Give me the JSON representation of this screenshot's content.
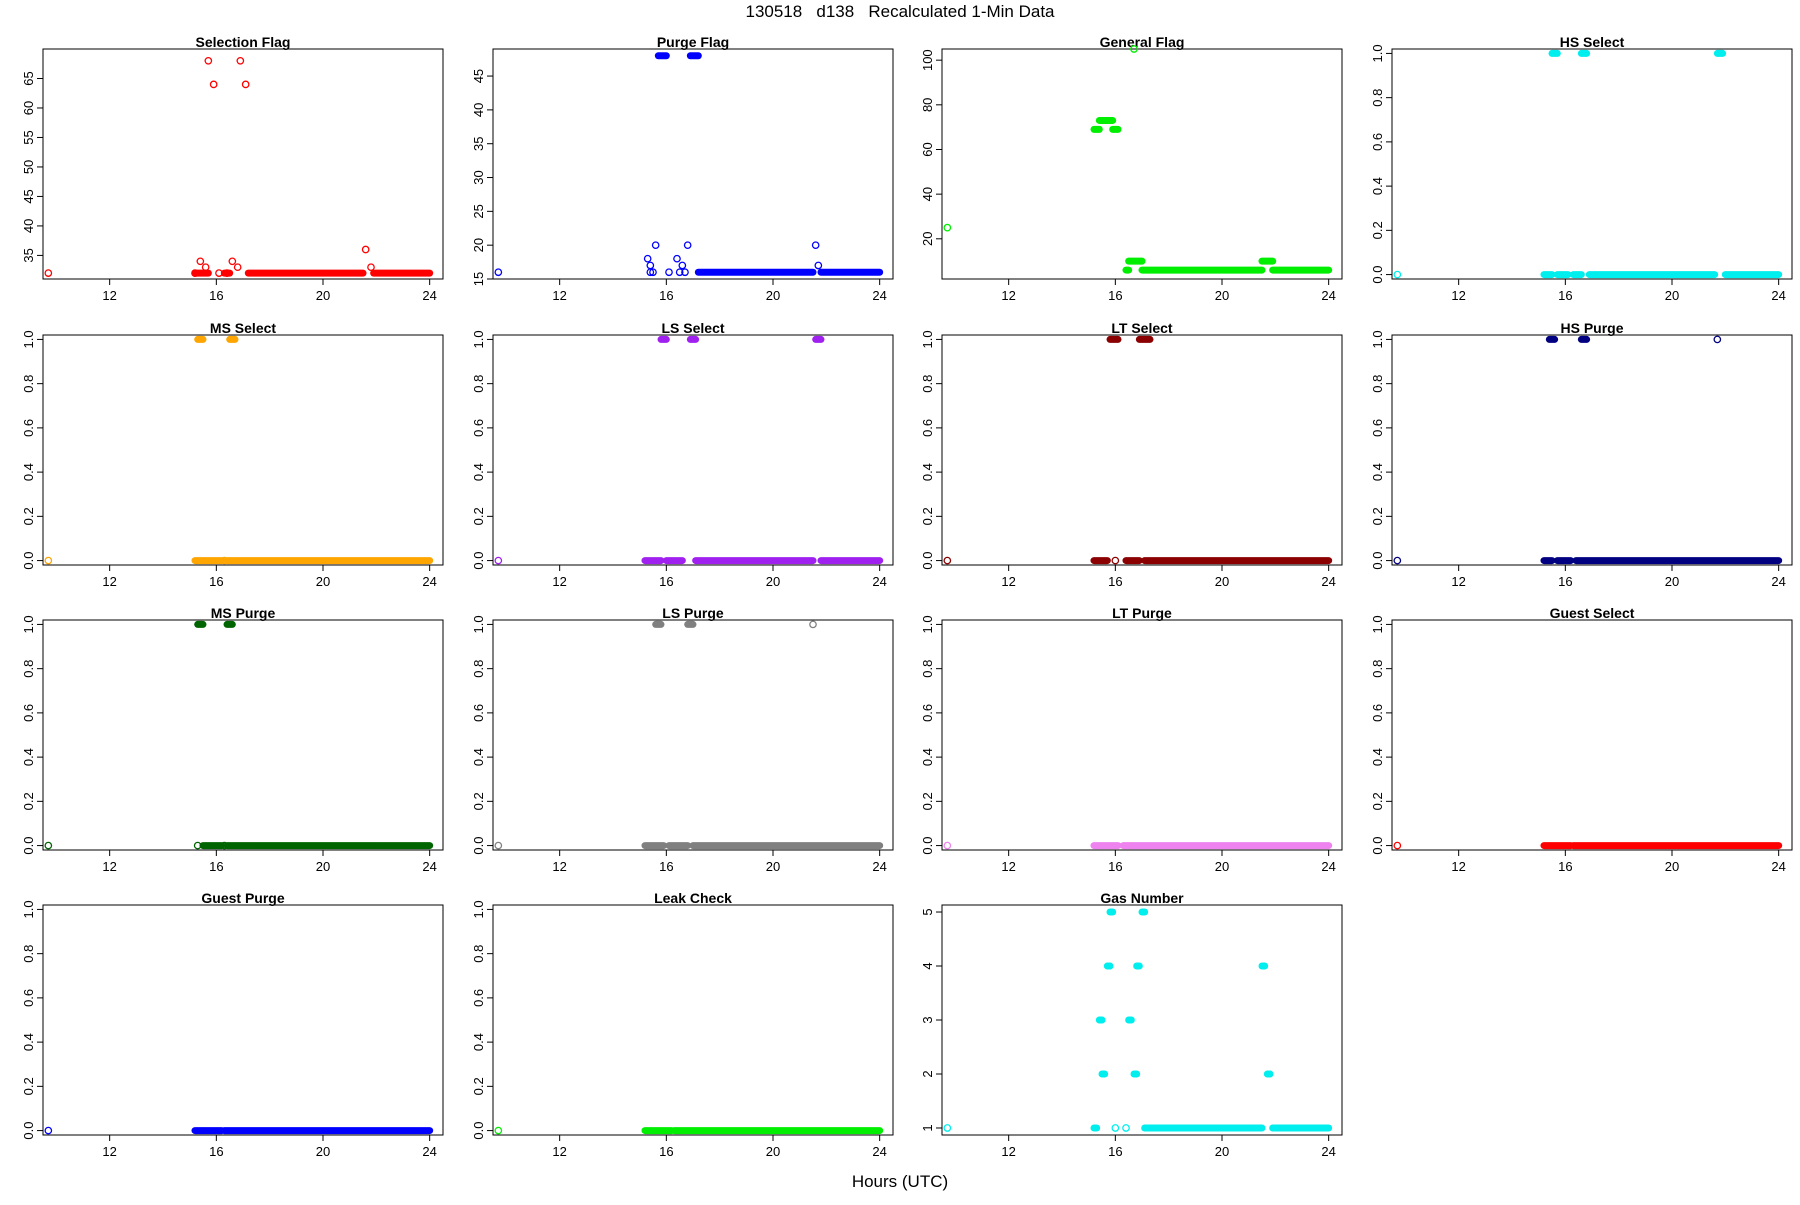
{
  "figure": {
    "title": "130518   d138   Recalculated 1-Min Data",
    "xlabel": "Hours (UTC)"
  },
  "chart_data": [
    {
      "type": "scatter",
      "title": "Selection Flag",
      "color": "#ff0000",
      "xlim": [
        9.5,
        24.5
      ],
      "ylim": [
        31,
        70
      ],
      "xticks": [
        12,
        16,
        20,
        24
      ],
      "yticks": [
        35,
        40,
        45,
        50,
        55,
        60,
        65
      ],
      "points": [
        [
          9.7,
          32
        ],
        [
          15.2,
          32
        ],
        [
          15.4,
          34
        ],
        [
          15.6,
          33
        ],
        [
          15.7,
          68
        ],
        [
          15.9,
          64
        ],
        [
          16.1,
          32
        ],
        [
          16.4,
          32
        ],
        [
          16.6,
          34
        ],
        [
          16.8,
          33
        ],
        [
          16.9,
          68
        ],
        [
          17.1,
          64
        ],
        [
          21.6,
          36
        ],
        [
          21.8,
          33
        ]
      ],
      "segments": [
        [
          15.2,
          15.7,
          32
        ],
        [
          16.3,
          16.5,
          32
        ],
        [
          17.2,
          21.5,
          32
        ],
        [
          21.9,
          24.0,
          32
        ]
      ]
    },
    {
      "type": "scatter",
      "title": "Purge Flag",
      "color": "#0000ff",
      "xlim": [
        9.5,
        24.5
      ],
      "ylim": [
        15,
        49
      ],
      "xticks": [
        12,
        16,
        20,
        24
      ],
      "yticks": [
        15,
        20,
        25,
        30,
        35,
        40,
        45
      ],
      "points": [
        [
          9.7,
          16
        ],
        [
          15.3,
          18
        ],
        [
          15.4,
          17
        ],
        [
          15.5,
          16
        ],
        [
          15.6,
          20
        ],
        [
          15.4,
          16
        ],
        [
          16.1,
          16
        ],
        [
          16.4,
          18
        ],
        [
          16.5,
          16
        ],
        [
          16.6,
          17
        ],
        [
          16.7,
          16
        ],
        [
          16.8,
          20
        ],
        [
          21.6,
          20
        ],
        [
          21.7,
          17
        ]
      ],
      "segments": [
        [
          15.7,
          16.0,
          48
        ],
        [
          16.9,
          17.2,
          48
        ],
        [
          17.2,
          21.5,
          16
        ],
        [
          21.8,
          24.0,
          16
        ]
      ]
    },
    {
      "type": "scatter",
      "title": "General Flag",
      "color": "#00ee00",
      "xlim": [
        9.5,
        24.5
      ],
      "ylim": [
        2,
        105
      ],
      "xticks": [
        12,
        16,
        20,
        24
      ],
      "yticks": [
        20,
        40,
        60,
        80,
        100
      ],
      "points": [
        [
          9.7,
          25
        ],
        [
          16.7,
          105
        ]
      ],
      "segments": [
        [
          15.2,
          15.4,
          69
        ],
        [
          15.4,
          15.9,
          73
        ],
        [
          15.9,
          16.1,
          69
        ],
        [
          16.4,
          16.5,
          6
        ],
        [
          16.5,
          17.0,
          10
        ],
        [
          17.0,
          21.5,
          6
        ],
        [
          21.5,
          21.9,
          10
        ],
        [
          21.9,
          24.0,
          6
        ]
      ]
    },
    {
      "type": "scatter",
      "title": "HS Select",
      "color": "#00eeee",
      "xlim": [
        9.5,
        24.5
      ],
      "ylim": [
        -0.02,
        1.02
      ],
      "xticks": [
        12,
        16,
        20,
        24
      ],
      "yticks": [
        0.0,
        0.2,
        0.4,
        0.6,
        0.8,
        1.0
      ],
      "points": [
        [
          9.7,
          0
        ]
      ],
      "segments": [
        [
          15.5,
          15.7,
          1
        ],
        [
          16.6,
          16.8,
          1
        ],
        [
          21.7,
          21.9,
          1
        ],
        [
          15.2,
          15.5,
          0
        ],
        [
          15.7,
          16.1,
          0
        ],
        [
          16.3,
          16.6,
          0
        ],
        [
          16.9,
          21.6,
          0
        ],
        [
          22.0,
          24.0,
          0
        ]
      ]
    },
    {
      "type": "scatter",
      "title": "MS Select",
      "color": "#ffa500",
      "xlim": [
        9.5,
        24.5
      ],
      "ylim": [
        -0.02,
        1.02
      ],
      "xticks": [
        12,
        16,
        20,
        24
      ],
      "yticks": [
        0.0,
        0.2,
        0.4,
        0.6,
        0.8,
        1.0
      ],
      "points": [
        [
          9.7,
          0
        ],
        [
          16.3,
          0
        ]
      ],
      "segments": [
        [
          15.3,
          15.5,
          1
        ],
        [
          16.5,
          16.7,
          1
        ],
        [
          15.2,
          16.2,
          0
        ],
        [
          16.4,
          24.0,
          0
        ]
      ]
    },
    {
      "type": "scatter",
      "title": "LS Select",
      "color": "#a020f0",
      "xlim": [
        9.5,
        24.5
      ],
      "ylim": [
        -0.02,
        1.02
      ],
      "xticks": [
        12,
        16,
        20,
        24
      ],
      "yticks": [
        0.0,
        0.2,
        0.4,
        0.6,
        0.8,
        1.0
      ],
      "points": [
        [
          9.7,
          0
        ]
      ],
      "segments": [
        [
          15.8,
          16.0,
          1
        ],
        [
          16.9,
          17.1,
          1
        ],
        [
          21.6,
          21.8,
          1
        ],
        [
          15.2,
          15.8,
          0
        ],
        [
          16.0,
          16.6,
          0
        ],
        [
          17.1,
          21.5,
          0
        ],
        [
          21.8,
          24.0,
          0
        ]
      ]
    },
    {
      "type": "scatter",
      "title": "LT Select",
      "color": "#8b0000",
      "xlim": [
        9.5,
        24.5
      ],
      "ylim": [
        -0.02,
        1.02
      ],
      "xticks": [
        12,
        16,
        20,
        24
      ],
      "yticks": [
        0.0,
        0.2,
        0.4,
        0.6,
        0.8,
        1.0
      ],
      "points": [
        [
          9.7,
          0
        ],
        [
          16.0,
          0
        ]
      ],
      "segments": [
        [
          15.8,
          16.1,
          1
        ],
        [
          16.9,
          17.3,
          1
        ],
        [
          15.2,
          15.7,
          0
        ],
        [
          16.4,
          16.9,
          0
        ],
        [
          17.1,
          24.0,
          0
        ]
      ]
    },
    {
      "type": "scatter",
      "title": "HS Purge",
      "color": "#000080",
      "xlim": [
        9.5,
        24.5
      ],
      "ylim": [
        -0.02,
        1.02
      ],
      "xticks": [
        12,
        16,
        20,
        24
      ],
      "yticks": [
        0.0,
        0.2,
        0.4,
        0.6,
        0.8,
        1.0
      ],
      "points": [
        [
          9.7,
          0
        ],
        [
          21.7,
          1
        ]
      ],
      "segments": [
        [
          15.4,
          15.6,
          1
        ],
        [
          16.6,
          16.8,
          1
        ],
        [
          15.2,
          15.5,
          0
        ],
        [
          15.7,
          16.2,
          0
        ],
        [
          16.4,
          24.0,
          0
        ]
      ]
    },
    {
      "type": "scatter",
      "title": "MS Purge",
      "color": "#006400",
      "xlim": [
        9.5,
        24.5
      ],
      "ylim": [
        -0.02,
        1.02
      ],
      "xticks": [
        12,
        16,
        20,
        24
      ],
      "yticks": [
        0.0,
        0.2,
        0.4,
        0.6,
        0.8,
        1.0
      ],
      "points": [
        [
          9.7,
          0
        ],
        [
          15.3,
          0
        ],
        [
          16.3,
          0
        ]
      ],
      "segments": [
        [
          15.3,
          15.5,
          1
        ],
        [
          16.4,
          16.6,
          1
        ],
        [
          15.5,
          16.2,
          0
        ],
        [
          16.4,
          24.0,
          0
        ]
      ]
    },
    {
      "type": "scatter",
      "title": "LS Purge",
      "color": "#808080",
      "xlim": [
        9.5,
        24.5
      ],
      "ylim": [
        -0.02,
        1.02
      ],
      "xticks": [
        12,
        16,
        20,
        24
      ],
      "yticks": [
        0.0,
        0.2,
        0.4,
        0.6,
        0.8,
        1.0
      ],
      "points": [
        [
          9.7,
          0
        ],
        [
          21.5,
          1
        ]
      ],
      "segments": [
        [
          15.6,
          15.8,
          1
        ],
        [
          16.8,
          17.0,
          1
        ],
        [
          15.2,
          15.9,
          0
        ],
        [
          16.1,
          16.8,
          0
        ],
        [
          17.0,
          24.0,
          0
        ]
      ]
    },
    {
      "type": "scatter",
      "title": "LT Purge",
      "color": "#ee82ee",
      "xlim": [
        9.5,
        24.5
      ],
      "ylim": [
        -0.02,
        1.02
      ],
      "xticks": [
        12,
        16,
        20,
        24
      ],
      "yticks": [
        0.0,
        0.2,
        0.4,
        0.6,
        0.8,
        1.0
      ],
      "points": [
        [
          9.7,
          0
        ]
      ],
      "segments": [
        [
          15.2,
          16.1,
          0
        ],
        [
          16.3,
          24.0,
          0
        ]
      ]
    },
    {
      "type": "scatter",
      "title": "Guest Select",
      "color": "#ff0000",
      "xlim": [
        9.5,
        24.5
      ],
      "ylim": [
        -0.02,
        1.02
      ],
      "xticks": [
        12,
        16,
        20,
        24
      ],
      "yticks": [
        0.0,
        0.2,
        0.4,
        0.6,
        0.8,
        1.0
      ],
      "points": [
        [
          9.7,
          0
        ]
      ],
      "segments": [
        [
          15.2,
          16.2,
          0
        ],
        [
          16.3,
          24.0,
          0
        ]
      ]
    },
    {
      "type": "scatter",
      "title": "Guest Purge",
      "color": "#0000ff",
      "xlim": [
        9.5,
        24.5
      ],
      "ylim": [
        -0.02,
        1.02
      ],
      "xticks": [
        12,
        16,
        20,
        24
      ],
      "yticks": [
        0.0,
        0.2,
        0.4,
        0.6,
        0.8,
        1.0
      ],
      "points": [
        [
          9.7,
          0
        ]
      ],
      "segments": [
        [
          15.2,
          16.2,
          0
        ],
        [
          16.3,
          24.0,
          0
        ]
      ]
    },
    {
      "type": "scatter",
      "title": "Leak Check",
      "color": "#00ee00",
      "xlim": [
        9.5,
        24.5
      ],
      "ylim": [
        -0.02,
        1.02
      ],
      "xticks": [
        12,
        16,
        20,
        24
      ],
      "yticks": [
        0.0,
        0.2,
        0.4,
        0.6,
        0.8,
        1.0
      ],
      "points": [
        [
          9.7,
          0
        ]
      ],
      "segments": [
        [
          15.2,
          16.2,
          0
        ],
        [
          16.3,
          24.0,
          0
        ]
      ]
    },
    {
      "type": "scatter",
      "title": "Gas Number",
      "color": "#00eeee",
      "xlim": [
        9.5,
        24.5
      ],
      "ylim": [
        0.87,
        5.13
      ],
      "xticks": [
        12,
        16,
        20,
        24
      ],
      "yticks": [
        1,
        2,
        3,
        4,
        5
      ],
      "points": [
        [
          9.7,
          1
        ],
        [
          16.0,
          1
        ],
        [
          16.4,
          1
        ]
      ],
      "segments": [
        [
          15.2,
          15.3,
          1
        ],
        [
          15.4,
          15.5,
          3
        ],
        [
          15.5,
          15.6,
          2
        ],
        [
          15.7,
          15.8,
          4
        ],
        [
          15.8,
          15.9,
          5
        ],
        [
          16.5,
          16.6,
          3
        ],
        [
          16.7,
          16.8,
          2
        ],
        [
          16.8,
          16.9,
          4
        ],
        [
          17.0,
          17.1,
          5
        ],
        [
          17.1,
          21.5,
          1
        ],
        [
          21.5,
          21.6,
          4
        ],
        [
          21.7,
          21.8,
          2
        ],
        [
          21.9,
          24.0,
          1
        ]
      ]
    }
  ]
}
